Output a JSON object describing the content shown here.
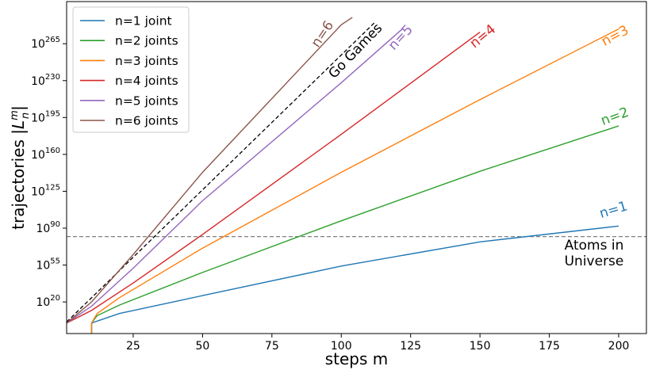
{
  "chart_data": {
    "type": "line",
    "xlabel": "steps m",
    "ylabel": "trajectories |L_n^m|",
    "xlim": [
      1,
      210
    ],
    "ylim": [
      -10,
      305
    ],
    "y_scale": "log10",
    "x_ticks": [
      25,
      50,
      75,
      100,
      125,
      150,
      175,
      200
    ],
    "y_ticks": [
      {
        "exp": 20,
        "label": "10",
        "sup": "20"
      },
      {
        "exp": 55,
        "label": "10",
        "sup": "55"
      },
      {
        "exp": 90,
        "label": "10",
        "sup": "90"
      },
      {
        "exp": 125,
        "label": "10",
        "sup": "125"
      },
      {
        "exp": 160,
        "label": "10",
        "sup": "160"
      },
      {
        "exp": 195,
        "label": "10",
        "sup": "195"
      },
      {
        "exp": 230,
        "label": "10",
        "sup": "230"
      },
      {
        "exp": 265,
        "label": "10",
        "sup": "265"
      }
    ],
    "legend_position": "top-left",
    "series": [
      {
        "name": "n=1 joint",
        "color": "#1f77b4",
        "end_label": "n=1",
        "points": [
          [
            10,
            -10
          ],
          [
            10,
            0
          ],
          [
            20,
            9
          ],
          [
            50,
            26
          ],
          [
            100,
            54
          ],
          [
            150,
            77
          ],
          [
            200,
            92
          ]
        ]
      },
      {
        "name": "n=2 joints",
        "color": "#2ca02c",
        "end_label": "n=2",
        "points": [
          [
            10,
            -10
          ],
          [
            10,
            0
          ],
          [
            12,
            7
          ],
          [
            20,
            17
          ],
          [
            50,
            48
          ],
          [
            100,
            97
          ],
          [
            150,
            144
          ],
          [
            200,
            187
          ]
        ]
      },
      {
        "name": "n=3 joints",
        "color": "#ff7f0e",
        "end_label": "n=3",
        "points": [
          [
            10,
            -10
          ],
          [
            10,
            0
          ],
          [
            12,
            9
          ],
          [
            20,
            24
          ],
          [
            50,
            71
          ],
          [
            100,
            143
          ],
          [
            150,
            212
          ],
          [
            200,
            279
          ]
        ]
      },
      {
        "name": "n=4 joints",
        "color": "#d62728",
        "end_label": "n=4",
        "points": [
          [
            1,
            0
          ],
          [
            10,
            12
          ],
          [
            25,
            38
          ],
          [
            50,
            84
          ],
          [
            100,
            179
          ],
          [
            150,
            276
          ]
        ]
      },
      {
        "name": "n=5 joints",
        "color": "#9467bd",
        "end_label": "n=5",
        "points": [
          [
            1,
            0
          ],
          [
            10,
            16
          ],
          [
            25,
            52
          ],
          [
            50,
            116
          ],
          [
            100,
            228
          ],
          [
            122,
            279
          ]
        ]
      },
      {
        "name": "n=6 joints",
        "color": "#8c564b",
        "end_label": "n=6",
        "points": [
          [
            1,
            0
          ],
          [
            10,
            20
          ],
          [
            25,
            65
          ],
          [
            50,
            143
          ],
          [
            100,
            283
          ],
          [
            104,
            290
          ]
        ]
      }
    ],
    "reference_lines": [
      {
        "label": "Go Games",
        "color": "#000000",
        "style": "dashed",
        "points": [
          [
            1,
            1
          ],
          [
            112,
            285
          ]
        ]
      },
      {
        "label": "Atoms in Universe",
        "label_lines": [
          "Atoms in",
          "Universe"
        ],
        "color": "#808080",
        "style": "dashed",
        "y": 82
      }
    ]
  }
}
